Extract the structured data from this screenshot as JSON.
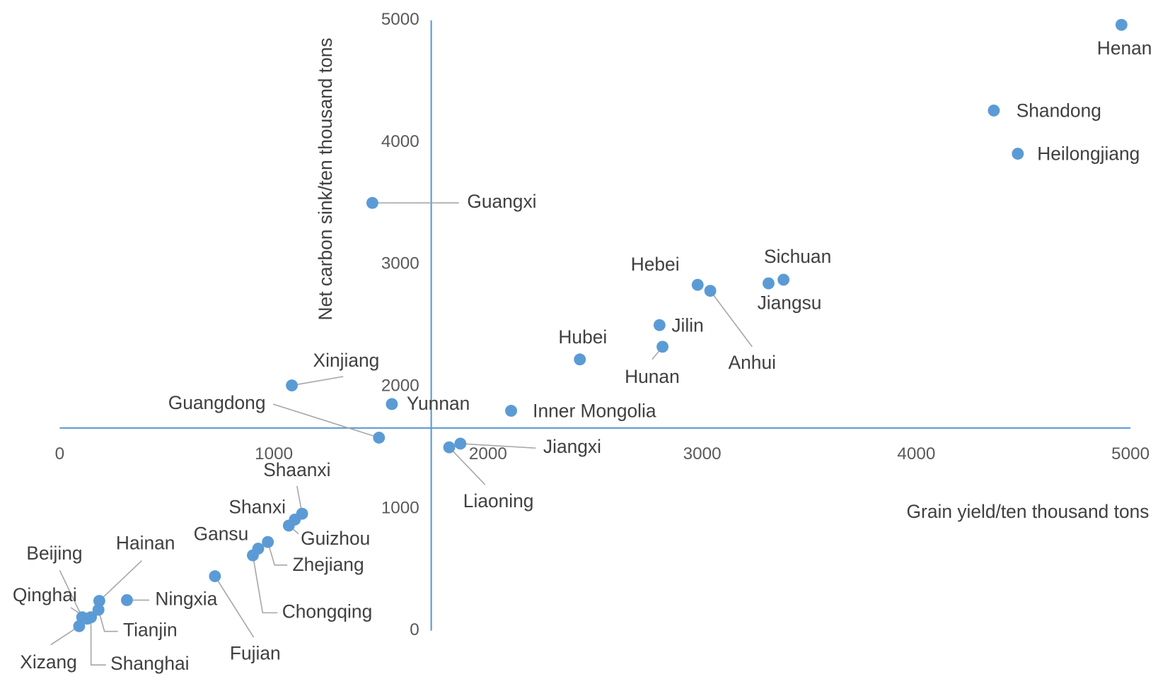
{
  "chart_data": {
    "type": "scatter",
    "x_label": "Grain yield/ten thousand tons",
    "y_label": "Net carbon sink/ten thousand tons",
    "labels": [
      "Henan",
      "Shandong",
      "Heilongjiang",
      "Guangxi",
      "Sichuan",
      "Jiangsu",
      "Hebei",
      "Anhui",
      "Jilin",
      "Hunan",
      "Hubei",
      "Xinjiang",
      "Yunnan",
      "Inner Mongolia",
      "Guangdong",
      "Jiangxi",
      "Liaoning",
      "Shaanxi",
      "Shanxi",
      "Guizhou",
      "Zhejiang",
      "Gansu",
      "Chongqing",
      "Fujian",
      "Ningxia",
      "Hainan",
      "Tianjin",
      "Beijing",
      "Shanghai",
      "Qinghai",
      "Xizang"
    ],
    "x": [
      4958,
      4362,
      4474,
      1460,
      3380,
      3310,
      2979,
      3038,
      2801,
      2815,
      2429,
      1084,
      1551,
      2108,
      1491,
      1871,
      1819,
      1132,
      1098,
      1070,
      972,
      927,
      902,
      725,
      314,
      185,
      181,
      105,
      146,
      129,
      91
    ],
    "values": [
      4963,
      4261,
      3907,
      3504,
      2875,
      2845,
      2833,
      2784,
      2503,
      2326,
      2222,
      2009,
      1856,
      1801,
      1581,
      1532,
      1502,
      958,
      910,
      861,
      726,
      672,
      617,
      446,
      250,
      244,
      171,
      110,
      110,
      98,
      37
    ],
    "color": "#5b9bd5",
    "xlim": [
      0,
      5000
    ],
    "xticks": [
      0,
      1000,
      2000,
      3000,
      4000,
      5000
    ],
    "ylim": [
      0,
      5000
    ],
    "yticks": [
      0,
      1000,
      2000,
      3000,
      4000,
      5000
    ],
    "x_axis_crosses_y": 1660,
    "y_axis_crosses_x": 1735,
    "grid": false
  }
}
